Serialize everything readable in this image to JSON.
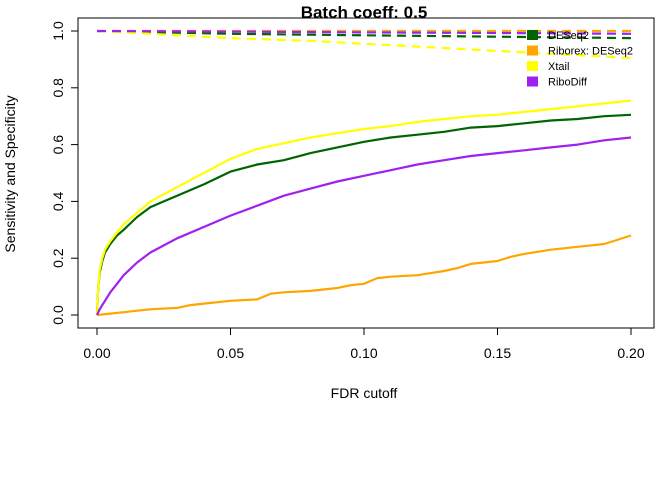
{
  "chart_data": {
    "type": "line",
    "title": "Batch coeff: 0.5",
    "xlabel": "FDR cutoff",
    "ylabel": "Sensitivity and Specificity",
    "xlim": [
      0,
      0.2
    ],
    "ylim": [
      0,
      1.0
    ],
    "x_ticks": [
      0.0,
      0.05,
      0.1,
      0.15,
      0.2
    ],
    "x_tick_labels": [
      "0.00",
      "0.05",
      "0.10",
      "0.15",
      "0.20"
    ],
    "y_ticks": [
      0.0,
      0.2,
      0.4,
      0.6,
      0.8,
      1.0
    ],
    "y_tick_labels": [
      "0.0",
      "0.2",
      "0.4",
      "0.6",
      "0.8",
      "1.0"
    ],
    "grid": false,
    "legend_position": "top-right",
    "series": [
      {
        "name": "DESeq2",
        "color": "#006400",
        "sensitivity": {
          "x": [
            0,
            0.0005,
            0.001,
            0.002,
            0.003,
            0.005,
            0.0075,
            0.01,
            0.015,
            0.02,
            0.025,
            0.03,
            0.04,
            0.05,
            0.06,
            0.07,
            0.08,
            0.09,
            0.1,
            0.11,
            0.12,
            0.13,
            0.14,
            0.15,
            0.16,
            0.17,
            0.18,
            0.19,
            0.2
          ],
          "y": [
            0,
            0.1,
            0.15,
            0.19,
            0.22,
            0.25,
            0.28,
            0.3,
            0.345,
            0.38,
            0.4,
            0.42,
            0.46,
            0.505,
            0.53,
            0.545,
            0.57,
            0.59,
            0.61,
            0.625,
            0.635,
            0.645,
            0.66,
            0.665,
            0.675,
            0.685,
            0.69,
            0.7,
            0.705
          ]
        },
        "specificity": {
          "x": [
            0,
            0.05,
            0.1,
            0.15,
            0.2
          ],
          "y": [
            1.0,
            0.99,
            0.985,
            0.98,
            0.975
          ]
        }
      },
      {
        "name": "Riborex: DESeq2",
        "color": "#FFA500",
        "sensitivity": {
          "x": [
            0,
            0.005,
            0.01,
            0.015,
            0.02,
            0.03,
            0.035,
            0.04,
            0.05,
            0.06,
            0.065,
            0.07,
            0.08,
            0.09,
            0.095,
            0.1,
            0.105,
            0.11,
            0.12,
            0.13,
            0.135,
            0.14,
            0.15,
            0.155,
            0.16,
            0.17,
            0.18,
            0.19,
            0.2
          ],
          "y": [
            0,
            0.005,
            0.01,
            0.015,
            0.02,
            0.025,
            0.035,
            0.04,
            0.05,
            0.055,
            0.075,
            0.08,
            0.085,
            0.095,
            0.105,
            0.11,
            0.13,
            0.135,
            0.14,
            0.155,
            0.165,
            0.18,
            0.19,
            0.205,
            0.215,
            0.23,
            0.24,
            0.25,
            0.28
          ]
        },
        "specificity": {
          "x": [
            0,
            0.2
          ],
          "y": [
            1.0,
            1.0
          ]
        }
      },
      {
        "name": "Xtail",
        "color": "#FFFF00",
        "sensitivity": {
          "x": [
            0,
            0.0005,
            0.001,
            0.002,
            0.003,
            0.005,
            0.0075,
            0.01,
            0.015,
            0.02,
            0.025,
            0.03,
            0.04,
            0.05,
            0.06,
            0.07,
            0.08,
            0.09,
            0.1,
            0.11,
            0.12,
            0.13,
            0.14,
            0.15,
            0.16,
            0.17,
            0.18,
            0.19,
            0.2
          ],
          "y": [
            0,
            0.1,
            0.16,
            0.2,
            0.23,
            0.26,
            0.29,
            0.32,
            0.36,
            0.4,
            0.425,
            0.45,
            0.5,
            0.55,
            0.585,
            0.605,
            0.625,
            0.64,
            0.655,
            0.665,
            0.68,
            0.69,
            0.7,
            0.705,
            0.715,
            0.725,
            0.735,
            0.745,
            0.755
          ]
        },
        "specificity": {
          "x": [
            0,
            0.01,
            0.03,
            0.05,
            0.08,
            0.1,
            0.12,
            0.15,
            0.18,
            0.2
          ],
          "y": [
            1.0,
            0.995,
            0.985,
            0.975,
            0.965,
            0.955,
            0.945,
            0.93,
            0.915,
            0.905
          ]
        }
      },
      {
        "name": "RiboDiff",
        "color": "#A020F0",
        "sensitivity": {
          "x": [
            0,
            0.001,
            0.002,
            0.003,
            0.005,
            0.0075,
            0.01,
            0.015,
            0.02,
            0.025,
            0.03,
            0.04,
            0.05,
            0.06,
            0.07,
            0.08,
            0.09,
            0.1,
            0.11,
            0.12,
            0.13,
            0.14,
            0.15,
            0.16,
            0.17,
            0.18,
            0.19,
            0.2
          ],
          "y": [
            0,
            0.02,
            0.035,
            0.05,
            0.08,
            0.11,
            0.14,
            0.185,
            0.22,
            0.245,
            0.27,
            0.31,
            0.35,
            0.385,
            0.42,
            0.445,
            0.47,
            0.49,
            0.51,
            0.53,
            0.545,
            0.56,
            0.57,
            0.58,
            0.59,
            0.6,
            0.615,
            0.625
          ]
        },
        "specificity": {
          "x": [
            0,
            0.05,
            0.1,
            0.15,
            0.2
          ],
          "y": [
            1.0,
            0.998,
            0.995,
            0.993,
            0.99
          ]
        }
      }
    ]
  }
}
